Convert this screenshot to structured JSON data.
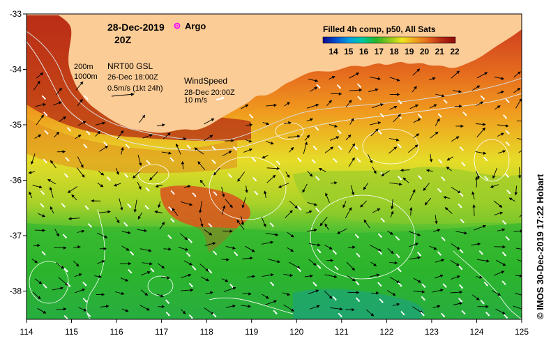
{
  "map": {
    "date": "28-Dec-2019",
    "time": "20Z",
    "argo_label": "Argo",
    "colorbar_title": "Filled 4h comp, p50, All Sats",
    "colorbar_ticks": [
      "14",
      "15",
      "16",
      "17",
      "18",
      "19",
      "20",
      "21",
      "22"
    ],
    "colorbar_colors": [
      "#0a0a8c",
      "#0050d0",
      "#00a0e0",
      "#00c8a0",
      "#28b428",
      "#8cc81e",
      "#f0e61e",
      "#f0a01e",
      "#e6641e",
      "#b42814",
      "#8c0a0a"
    ],
    "legend": {
      "depth_200": "200m",
      "depth_1000": "1000m",
      "current_source": "NRT00 GSL",
      "current_time": "26-Dec 18:00Z",
      "current_scale": "0.5m/s (1kt 24h)",
      "wind_title": "WindSpeed",
      "wind_time": "28-Dec 20:00Z",
      "wind_scale": "10 m/s"
    },
    "x_ticks": [
      "114",
      "115",
      "116",
      "117",
      "118",
      "119",
      "120",
      "121",
      "122",
      "123",
      "124",
      "125"
    ],
    "y_ticks": [
      "-33",
      "-34",
      "-35",
      "-36",
      "-37",
      "-38"
    ],
    "credit": "© IMOS 30-Dec-2019 17:22 Hobart",
    "land_color": "#fccc96",
    "argo_color": "#ff00ff"
  }
}
